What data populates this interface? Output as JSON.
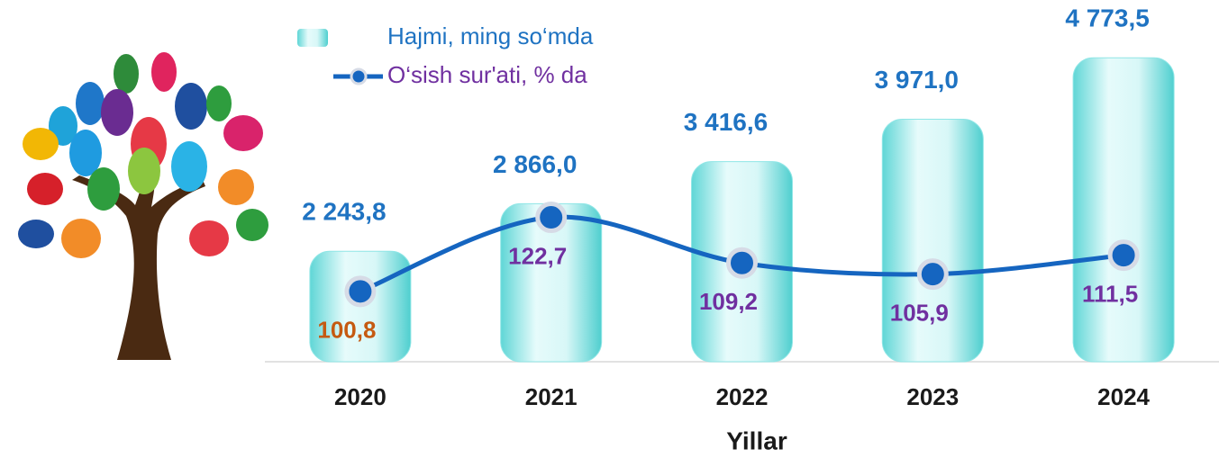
{
  "chart_data": {
    "type": "bar-line",
    "x_label": "Yillar",
    "categories": [
      "2020",
      "2021",
      "2022",
      "2023",
      "2024"
    ],
    "series": [
      {
        "name": "Hajmi, ming so‘mda",
        "type": "bar",
        "color": "#8fe6e6",
        "values": [
          2243.8,
          2866.0,
          3416.6,
          3971.0,
          4773.5
        ],
        "value_labels": [
          "2 243,8",
          "2 866,0",
          "3 416,6",
          "3 971,0",
          "4 773,5"
        ],
        "label_colors": [
          "#1f73c2",
          "#1f73c2",
          "#1f73c2",
          "#1f73c2",
          "#1f73c2"
        ]
      },
      {
        "name": "O‘sish sur'ati, % da",
        "type": "line",
        "axis": "y2",
        "color": "#1565c0",
        "values": [
          100.8,
          122.7,
          109.2,
          105.9,
          111.5
        ],
        "value_labels": [
          "100,8",
          "122,7",
          "109,2",
          "105,9",
          "111,5"
        ],
        "label_colors": [
          "#c55a11",
          "#7030a0",
          "#7030a0",
          "#7030a0",
          "#7030a0"
        ]
      }
    ],
    "ylim": [
      800,
      5000
    ],
    "y2lim": [
      80,
      175
    ],
    "legend": "top"
  }
}
